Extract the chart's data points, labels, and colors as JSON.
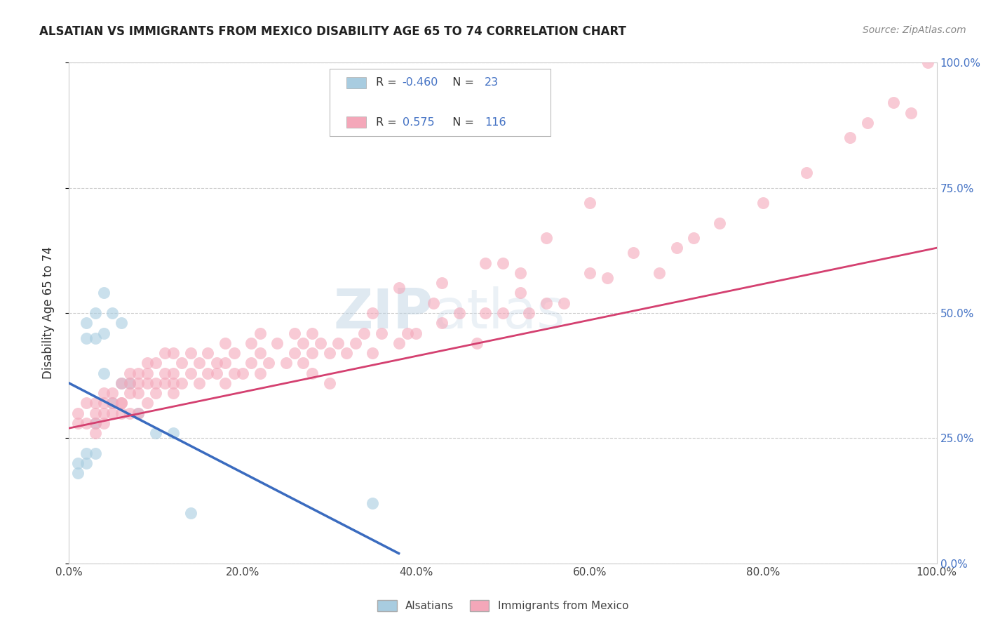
{
  "title": "ALSATIAN VS IMMIGRANTS FROM MEXICO DISABILITY AGE 65 TO 74 CORRELATION CHART",
  "source": "Source: ZipAtlas.com",
  "ylabel": "Disability Age 65 to 74",
  "watermark_zip": "ZIP",
  "watermark_atlas": "atlas",
  "xlim": [
    0.0,
    1.0
  ],
  "ylim": [
    0.0,
    1.0
  ],
  "xtick_vals": [
    0.0,
    0.2,
    0.4,
    0.6,
    0.8,
    1.0
  ],
  "xtick_labels": [
    "0.0%",
    "20.0%",
    "40.0%",
    "60.0%",
    "80.0%",
    "100.0%"
  ],
  "ytick_vals": [
    0.0,
    0.25,
    0.5,
    0.75,
    1.0
  ],
  "ytick_labels_right": [
    "0.0%",
    "25.0%",
    "50.0%",
    "75.0%",
    "100.0%"
  ],
  "blue_R": -0.46,
  "blue_N": 23,
  "pink_R": 0.575,
  "pink_N": 116,
  "blue_color": "#a8cce0",
  "pink_color": "#f4a7b9",
  "blue_line_color": "#3a6bbf",
  "pink_line_color": "#d44070",
  "legend_label_blue": "Alsatians",
  "legend_label_pink": "Immigrants from Mexico",
  "blue_scatter_x": [
    0.01,
    0.01,
    0.02,
    0.02,
    0.02,
    0.02,
    0.03,
    0.03,
    0.03,
    0.03,
    0.04,
    0.04,
    0.04,
    0.05,
    0.05,
    0.06,
    0.06,
    0.07,
    0.08,
    0.1,
    0.12,
    0.14,
    0.35
  ],
  "blue_scatter_y": [
    0.18,
    0.2,
    0.2,
    0.22,
    0.45,
    0.48,
    0.22,
    0.28,
    0.45,
    0.5,
    0.38,
    0.46,
    0.54,
    0.32,
    0.5,
    0.36,
    0.48,
    0.36,
    0.3,
    0.26,
    0.26,
    0.1,
    0.12
  ],
  "pink_scatter_x": [
    0.01,
    0.01,
    0.02,
    0.02,
    0.03,
    0.03,
    0.03,
    0.03,
    0.04,
    0.04,
    0.04,
    0.04,
    0.05,
    0.05,
    0.05,
    0.06,
    0.06,
    0.06,
    0.06,
    0.07,
    0.07,
    0.07,
    0.07,
    0.08,
    0.08,
    0.08,
    0.08,
    0.09,
    0.09,
    0.09,
    0.09,
    0.1,
    0.1,
    0.1,
    0.11,
    0.11,
    0.11,
    0.12,
    0.12,
    0.12,
    0.12,
    0.13,
    0.13,
    0.14,
    0.14,
    0.15,
    0.15,
    0.16,
    0.16,
    0.17,
    0.17,
    0.18,
    0.18,
    0.18,
    0.19,
    0.19,
    0.2,
    0.21,
    0.21,
    0.22,
    0.22,
    0.22,
    0.23,
    0.24,
    0.25,
    0.26,
    0.26,
    0.27,
    0.27,
    0.28,
    0.28,
    0.29,
    0.3,
    0.3,
    0.31,
    0.32,
    0.33,
    0.34,
    0.35,
    0.36,
    0.38,
    0.39,
    0.4,
    0.43,
    0.45,
    0.47,
    0.48,
    0.5,
    0.52,
    0.53,
    0.55,
    0.57,
    0.6,
    0.62,
    0.65,
    0.68,
    0.7,
    0.72,
    0.75,
    0.8,
    0.85,
    0.9,
    0.92,
    0.95,
    0.97,
    0.99,
    0.48,
    0.55,
    0.6,
    0.43,
    0.35,
    0.28,
    0.38,
    0.42,
    0.5,
    0.52
  ],
  "pink_scatter_y": [
    0.28,
    0.3,
    0.28,
    0.32,
    0.26,
    0.3,
    0.32,
    0.28,
    0.28,
    0.3,
    0.34,
    0.32,
    0.3,
    0.32,
    0.34,
    0.3,
    0.32,
    0.36,
    0.32,
    0.3,
    0.34,
    0.36,
    0.38,
    0.3,
    0.34,
    0.36,
    0.38,
    0.32,
    0.36,
    0.38,
    0.4,
    0.34,
    0.36,
    0.4,
    0.36,
    0.38,
    0.42,
    0.34,
    0.36,
    0.38,
    0.42,
    0.36,
    0.4,
    0.38,
    0.42,
    0.36,
    0.4,
    0.38,
    0.42,
    0.38,
    0.4,
    0.36,
    0.4,
    0.44,
    0.38,
    0.42,
    0.38,
    0.4,
    0.44,
    0.38,
    0.42,
    0.46,
    0.4,
    0.44,
    0.4,
    0.42,
    0.46,
    0.4,
    0.44,
    0.42,
    0.46,
    0.44,
    0.36,
    0.42,
    0.44,
    0.42,
    0.44,
    0.46,
    0.42,
    0.46,
    0.44,
    0.46,
    0.46,
    0.48,
    0.5,
    0.44,
    0.5,
    0.5,
    0.54,
    0.5,
    0.52,
    0.52,
    0.58,
    0.57,
    0.62,
    0.58,
    0.63,
    0.65,
    0.68,
    0.72,
    0.78,
    0.85,
    0.88,
    0.92,
    0.9,
    1.0,
    0.6,
    0.65,
    0.72,
    0.56,
    0.5,
    0.38,
    0.55,
    0.52,
    0.6,
    0.58
  ],
  "blue_line_x": [
    0.0,
    0.38
  ],
  "blue_line_y": [
    0.36,
    0.02
  ],
  "pink_line_x": [
    0.0,
    1.0
  ],
  "pink_line_y": [
    0.27,
    0.63
  ]
}
